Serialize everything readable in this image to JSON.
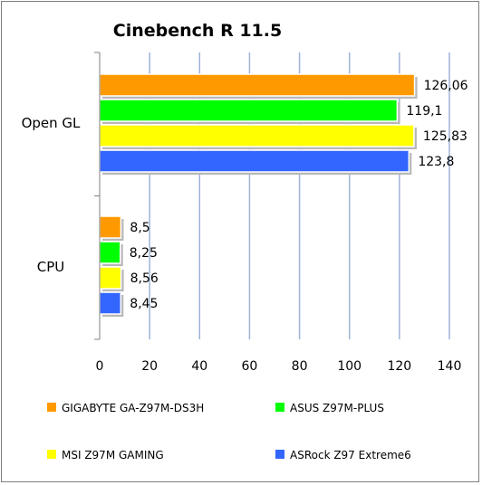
{
  "chart_data": {
    "type": "bar",
    "orientation": "horizontal",
    "title": "Cinebench R 11.5",
    "categories": [
      "Open GL",
      "CPU"
    ],
    "series": [
      {
        "name": "GIGABYTE GA-Z97M-DS3H",
        "color": "#ff9900",
        "values": [
          126.06,
          8.5
        ],
        "labels": [
          "126,06",
          "8,5"
        ]
      },
      {
        "name": "ASUS Z97M-PLUS",
        "color": "#00ff00",
        "values": [
          119.1,
          8.25
        ],
        "labels": [
          "119,1",
          "8,25"
        ]
      },
      {
        "name": "MSI Z97M GAMING",
        "color": "#ffff00",
        "values": [
          125.83,
          8.56
        ],
        "labels": [
          "125,83",
          "8,56"
        ]
      },
      {
        "name": "ASRock Z97 Extreme6",
        "color": "#3366ff",
        "values": [
          123.8,
          8.45
        ],
        "labels": [
          "123,8",
          "8,45"
        ]
      }
    ],
    "xlim": [
      0,
      140
    ],
    "xticks": [
      0,
      20,
      40,
      60,
      80,
      100,
      120,
      140
    ],
    "grid": true,
    "legend_position": "bottom"
  }
}
